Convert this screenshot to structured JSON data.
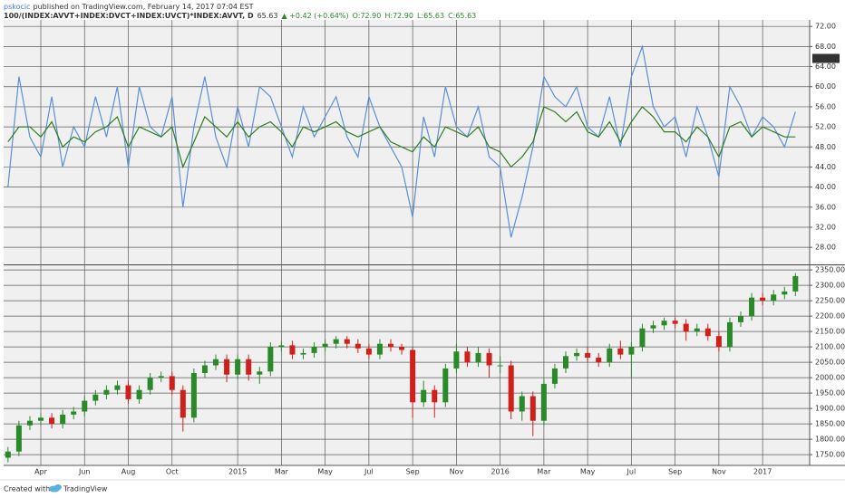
{
  "header": {
    "author": "pskocic",
    "published": "published on TradingView.com, February 14, 2017 07:04 EST",
    "symbol": "100/(INDEX:AVVT+INDEX:DVCT+INDEX:UVCT)*INDEX:AVVT, D",
    "last": "65.63",
    "change": "▲ +0.42 (+0.64%)",
    "open": "O:72.90",
    "high": "H:72.90",
    "low": "L:65.63",
    "close": "C:65.63"
  },
  "footer": {
    "created": "Created with",
    "brand": "TradingView"
  },
  "chart_data": [
    {
      "type": "line",
      "ylim": [
        24.6,
        73.3
      ],
      "price_tag": 65.63,
      "grid": true,
      "yticks": [
        {
          "value": 28,
          "label": "28.00"
        },
        {
          "value": 32,
          "label": "32.00"
        },
        {
          "value": 36,
          "label": "36.00"
        },
        {
          "value": 40,
          "label": "40.00"
        },
        {
          "value": 44,
          "label": "44.00"
        },
        {
          "value": 48,
          "label": "48.00"
        },
        {
          "value": 52,
          "label": "52.00"
        },
        {
          "value": 56,
          "label": "56.00"
        },
        {
          "value": 60,
          "label": "60.00"
        },
        {
          "value": 64,
          "label": "64.00"
        },
        {
          "value": 68,
          "label": "68.00"
        },
        {
          "value": 72,
          "label": "72.00"
        }
      ],
      "series": [
        {
          "color": "#5b8fd6",
          "values": [
            40,
            62,
            50,
            46,
            58,
            44,
            52,
            48,
            58,
            50,
            60,
            44,
            60,
            52,
            50,
            58,
            36,
            52,
            62,
            50,
            44,
            56,
            48,
            60,
            58,
            52,
            46,
            56,
            50,
            54,
            58,
            50,
            46,
            58,
            52,
            48,
            44,
            34,
            54,
            46,
            60,
            52,
            50,
            56,
            46,
            44,
            30,
            38,
            48,
            62,
            58,
            56,
            60,
            52,
            50,
            58,
            48,
            62,
            68,
            56,
            52,
            54,
            46,
            56,
            50,
            42,
            60,
            56,
            50,
            54,
            52,
            48,
            55
          ]
        },
        {
          "color": "#2f7d1f",
          "values": [
            49,
            52,
            52,
            50,
            53,
            48,
            50,
            49,
            51,
            52,
            54,
            48,
            52,
            51,
            50,
            52,
            44,
            49,
            54,
            52,
            50,
            53,
            50,
            52,
            53,
            51,
            48,
            52,
            51,
            52,
            53,
            51,
            50,
            51,
            52,
            49,
            48,
            47,
            50,
            48,
            52,
            51,
            50,
            52,
            48,
            47,
            44,
            46,
            49,
            56,
            55,
            53,
            55,
            51,
            50,
            53,
            49,
            53,
            56,
            54,
            51,
            51,
            49,
            52,
            50,
            46,
            52,
            53,
            50,
            52,
            51,
            50,
            50
          ]
        }
      ]
    },
    {
      "type": "candlestick",
      "ylim": [
        1715,
        2365
      ],
      "grid": true,
      "up_color": "#2a8a2a",
      "down_color": "#d0201a",
      "yticks": [
        {
          "value": 1750,
          "label": "1750.00"
        },
        {
          "value": 1800,
          "label": "1800.00"
        },
        {
          "value": 1850,
          "label": "1850.00"
        },
        {
          "value": 1900,
          "label": "1900.00"
        },
        {
          "value": 1950,
          "label": "1950.00"
        },
        {
          "value": 2000,
          "label": "2000.00"
        },
        {
          "value": 2050,
          "label": "2050.00"
        },
        {
          "value": 2100,
          "label": "2100.00"
        },
        {
          "value": 2150,
          "label": "2150.00"
        },
        {
          "value": 2200,
          "label": "2200.00"
        },
        {
          "value": 2250,
          "label": "2250.00"
        },
        {
          "value": 2300,
          "label": "2300.00"
        },
        {
          "value": 2350,
          "label": "2350.00"
        }
      ],
      "xlim": [
        -0.4,
        73.3
      ],
      "xticks": [
        {
          "value": 3,
          "label": "Apr"
        },
        {
          "value": 7,
          "label": "Jun"
        },
        {
          "value": 11,
          "label": "Aug"
        },
        {
          "value": 15,
          "label": "Oct"
        },
        {
          "value": 21,
          "label": "2015"
        },
        {
          "value": 25,
          "label": "Mar"
        },
        {
          "value": 29,
          "label": "May"
        },
        {
          "value": 33,
          "label": "Jul"
        },
        {
          "value": 37,
          "label": "Sep"
        },
        {
          "value": 41,
          "label": "Nov"
        },
        {
          "value": 45,
          "label": "2016"
        },
        {
          "value": 49,
          "label": "Mar"
        },
        {
          "value": 53,
          "label": "May"
        },
        {
          "value": 57,
          "label": "Jul"
        },
        {
          "value": 61,
          "label": "Sep"
        },
        {
          "value": 65,
          "label": "Nov"
        },
        {
          "value": 69,
          "label": "2017"
        }
      ],
      "open": [
        1740,
        1760,
        1845,
        1860,
        1870,
        1850,
        1880,
        1890,
        1925,
        1945,
        1960,
        1975,
        1930,
        1960,
        2000,
        2005,
        1960,
        1870,
        2015,
        2040,
        2060,
        2010,
        2060,
        2010,
        2020,
        2100,
        2105,
        2075,
        2080,
        2100,
        2110,
        2125,
        2110,
        2095,
        2075,
        2110,
        2100,
        2090,
        1920,
        1960,
        1920,
        2030,
        2085,
        2050,
        2080,
        2040,
        2040,
        1890,
        1940,
        1860,
        1980,
        2030,
        2070,
        2080,
        2065,
        2050,
        2095,
        2075,
        2100,
        2160,
        2170,
        2185,
        2175,
        2150,
        2160,
        2135,
        2100,
        2180,
        2200,
        2260,
        2250,
        2270,
        2280
      ],
      "high": [
        1775,
        1860,
        1875,
        1885,
        1885,
        1895,
        1905,
        1940,
        1960,
        1975,
        1990,
        1990,
        1975,
        2015,
        2020,
        2020,
        1975,
        2030,
        2055,
        2075,
        2075,
        2075,
        2075,
        2035,
        2115,
        2120,
        2120,
        2095,
        2115,
        2125,
        2135,
        2135,
        2125,
        2110,
        2125,
        2125,
        2110,
        2100,
        1990,
        1975,
        2045,
        2110,
        2100,
        2100,
        2095,
        2070,
        2055,
        1955,
        1955,
        1995,
        2045,
        2085,
        2095,
        2100,
        2080,
        2110,
        2120,
        2115,
        2175,
        2185,
        2195,
        2195,
        2190,
        2175,
        2175,
        2150,
        2195,
        2215,
        2275,
        2275,
        2285,
        2295,
        2340
      ],
      "low": [
        1725,
        1745,
        1830,
        1845,
        1835,
        1835,
        1865,
        1875,
        1910,
        1930,
        1945,
        1915,
        1915,
        1945,
        1985,
        1945,
        1825,
        1855,
        2000,
        2025,
        1985,
        1995,
        1990,
        1980,
        2005,
        2085,
        2060,
        2060,
        2065,
        2085,
        2095,
        2095,
        2080,
        2060,
        2060,
        2085,
        2075,
        1870,
        1905,
        1870,
        1905,
        2015,
        2035,
        2035,
        2000,
        2015,
        1865,
        1860,
        1810,
        1845,
        1965,
        2015,
        2055,
        2050,
        2035,
        2035,
        2060,
        2000,
        2085,
        2145,
        2155,
        2160,
        2120,
        2135,
        2120,
        2085,
        2085,
        2165,
        2185,
        2235,
        2235,
        2255,
        2265
      ],
      "close": [
        1760,
        1845,
        1860,
        1870,
        1850,
        1880,
        1890,
        1925,
        1945,
        1960,
        1975,
        1930,
        1960,
        2000,
        2005,
        1960,
        1870,
        2015,
        2040,
        2060,
        2010,
        2060,
        2010,
        2020,
        2100,
        2105,
        2075,
        2080,
        2100,
        2110,
        2125,
        2110,
        2095,
        2075,
        2110,
        2100,
        2090,
        1920,
        1960,
        1920,
        2030,
        2085,
        2050,
        2080,
        2040,
        2040,
        1890,
        1940,
        1860,
        1980,
        2030,
        2070,
        2080,
        2065,
        2050,
        2095,
        2075,
        2100,
        2160,
        2170,
        2185,
        2175,
        2150,
        2160,
        2135,
        2100,
        2180,
        2200,
        2260,
        2250,
        2270,
        2280,
        2330
      ]
    }
  ]
}
